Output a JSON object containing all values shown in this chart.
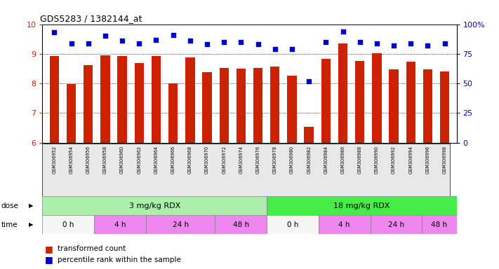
{
  "title": "GDS5283 / 1382144_at",
  "samples": [
    "GSM306952",
    "GSM306954",
    "GSM306956",
    "GSM306958",
    "GSM306960",
    "GSM306962",
    "GSM306964",
    "GSM306966",
    "GSM306968",
    "GSM306970",
    "GSM306972",
    "GSM306974",
    "GSM306976",
    "GSM306978",
    "GSM306980",
    "GSM306982",
    "GSM306984",
    "GSM306986",
    "GSM306988",
    "GSM306990",
    "GSM306992",
    "GSM306994",
    "GSM306996",
    "GSM306998"
  ],
  "bar_values": [
    8.92,
    7.97,
    8.62,
    8.95,
    8.93,
    8.68,
    8.92,
    8.0,
    8.88,
    8.38,
    8.52,
    8.5,
    8.51,
    8.57,
    8.27,
    6.53,
    8.82,
    9.35,
    8.77,
    9.03,
    8.48,
    8.73,
    8.47,
    8.4
  ],
  "blue_values": [
    93,
    84,
    84,
    90,
    86,
    84,
    87,
    91,
    86,
    83,
    85,
    85,
    83,
    79,
    79,
    52,
    85,
    94,
    85,
    84,
    82,
    84,
    82,
    84
  ],
  "bar_color": "#cc2200",
  "dot_color": "#0000cc",
  "ylim_left": [
    6,
    10
  ],
  "ylim_right": [
    0,
    100
  ],
  "yticks_left": [
    6,
    7,
    8,
    9,
    10
  ],
  "yticks_right": [
    0,
    25,
    50,
    75,
    100
  ],
  "dose_labels": [
    "3 mg/kg RDX",
    "18 mg/kg RDX"
  ],
  "dose_color_light": "#aaf0aa",
  "dose_color_bright": "#44ee44",
  "time_colors": [
    "#f5f5f5",
    "#ee88ee",
    "#ee88ee",
    "#ee88ee"
  ],
  "bg_color": "#e8e8e8",
  "plot_bg": "#ffffff",
  "time_ranges": [
    [
      0,
      3,
      "0 h",
      "#f5f5f5"
    ],
    [
      3,
      6,
      "4 h",
      "#ee88ee"
    ],
    [
      6,
      10,
      "24 h",
      "#ee88ee"
    ],
    [
      10,
      13,
      "48 h",
      "#ee88ee"
    ],
    [
      13,
      16,
      "0 h",
      "#f5f5f5"
    ],
    [
      16,
      19,
      "4 h",
      "#ee88ee"
    ],
    [
      19,
      22,
      "24 h",
      "#ee88ee"
    ],
    [
      22,
      24,
      "48 h",
      "#ee88ee"
    ]
  ]
}
